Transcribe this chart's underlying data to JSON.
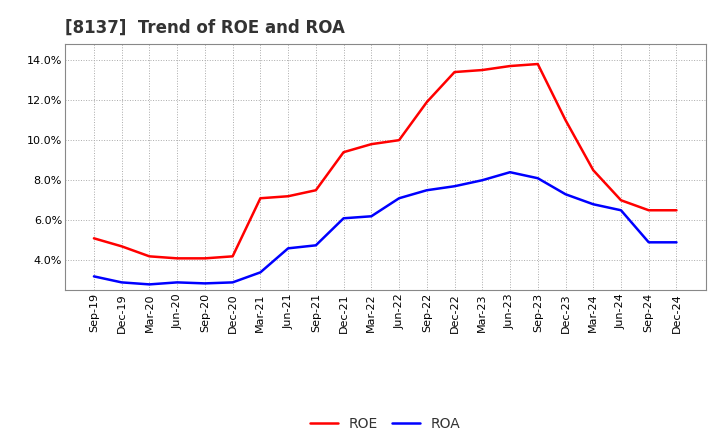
{
  "title": "[8137]  Trend of ROE and ROA",
  "x_labels": [
    "Sep-19",
    "Dec-19",
    "Mar-20",
    "Jun-20",
    "Sep-20",
    "Dec-20",
    "Mar-21",
    "Jun-21",
    "Sep-21",
    "Dec-21",
    "Mar-22",
    "Jun-22",
    "Sep-22",
    "Dec-22",
    "Mar-23",
    "Jun-23",
    "Sep-23",
    "Dec-23",
    "Mar-24",
    "Jun-24",
    "Sep-24",
    "Dec-24"
  ],
  "roe": [
    5.1,
    4.7,
    4.2,
    4.1,
    4.1,
    4.2,
    7.1,
    7.2,
    7.5,
    9.4,
    9.8,
    10.0,
    11.9,
    13.4,
    13.5,
    13.7,
    13.8,
    11.0,
    8.5,
    7.0,
    6.5,
    6.5
  ],
  "roa": [
    3.2,
    2.9,
    2.8,
    2.9,
    2.85,
    2.9,
    3.4,
    4.6,
    4.75,
    6.1,
    6.2,
    7.1,
    7.5,
    7.7,
    8.0,
    8.4,
    8.1,
    7.3,
    6.8,
    6.5,
    4.9,
    4.9
  ],
  "roe_color": "#ff0000",
  "roa_color": "#0000ff",
  "background_color": "#ffffff",
  "grid_color": "#aaaaaa",
  "ylim": [
    2.5,
    14.8
  ],
  "yticks": [
    4.0,
    6.0,
    8.0,
    10.0,
    12.0,
    14.0
  ],
  "title_fontsize": 12,
  "legend_fontsize": 10,
  "tick_fontsize": 8,
  "line_width": 1.8
}
